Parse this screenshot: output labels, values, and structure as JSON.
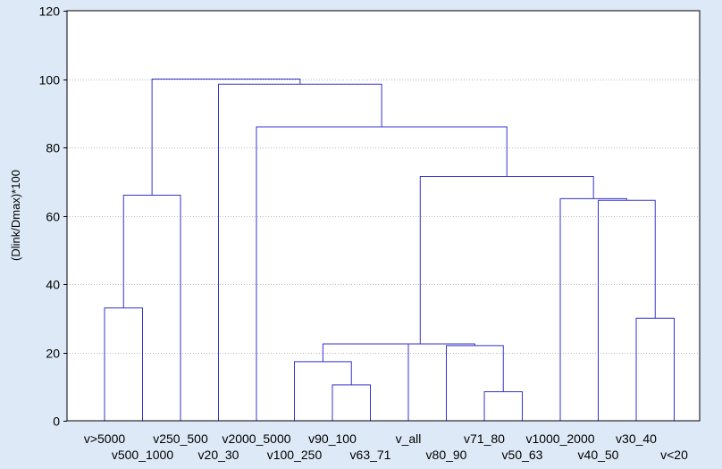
{
  "chart_data": {
    "type": "dendrogram",
    "title": "",
    "xlabel": "",
    "ylabel": "(Dlink/Dmax)*100",
    "ylim": [
      0,
      120
    ],
    "yticks": [
      0,
      20,
      40,
      60,
      80,
      100,
      120
    ],
    "grid": "horizontal dotted",
    "colors": {
      "background": "#dde9f6",
      "plot_area": "#ffffff",
      "lines": "#3333cc",
      "frame": "#000000"
    },
    "leaves": [
      "v>5000",
      "v500_1000",
      "v250_500",
      "v20_30",
      "v2000_5000",
      "v100_250",
      "v90_100",
      "v63_71",
      "v_all",
      "v80_90",
      "v71_80",
      "v50_63",
      "v1000_2000",
      "v40_50",
      "v30_40",
      "v<20"
    ],
    "merges": [
      {
        "left": 6,
        "right": 7,
        "height": 10.5
      },
      {
        "left": 10,
        "right": 11,
        "height": 8.5
      },
      {
        "left": 14,
        "right": 15,
        "height": 30
      },
      {
        "left": 0,
        "right": 1,
        "height": 33
      },
      {
        "left": 5,
        "right": 16,
        "height": 17.3
      },
      {
        "left": 9,
        "right": 17,
        "height": 22
      },
      {
        "left": 20,
        "right": 8,
        "height": 22.5
      },
      {
        "left": 22,
        "right": 21,
        "height": 22.5
      },
      {
        "left": 13,
        "right": 18,
        "height": 64.5
      },
      {
        "left": 12,
        "right": 24,
        "height": 65
      },
      {
        "left": 19,
        "right": 2,
        "height": 66
      },
      {
        "left": 23,
        "right": 25,
        "height": 71.5
      },
      {
        "left": 4,
        "right": 27,
        "height": 86
      },
      {
        "left": 3,
        "right": 28,
        "height": 98.5
      },
      {
        "left": 26,
        "right": 29,
        "height": 100
      }
    ]
  }
}
